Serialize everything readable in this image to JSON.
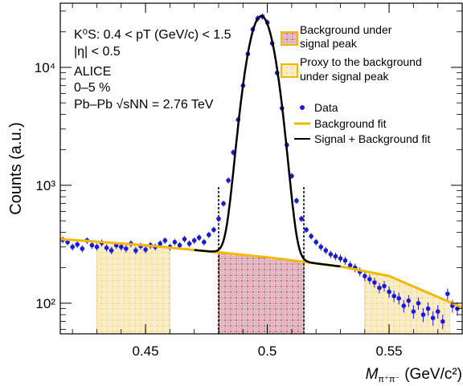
{
  "chart_data": {
    "type": "scatter",
    "yscale": "log",
    "xlim": [
      0.415,
      0.58
    ],
    "ylim": [
      55,
      35000
    ],
    "xlabel": {
      "main": "M",
      "sub": "π⁺π⁻",
      "unit": "(GeV/c²)"
    },
    "ylabel": "Counts (a.u.)",
    "x_ticks": [
      0.45,
      0.5,
      0.55
    ],
    "x_tick_labels": [
      "0.45",
      "0.5",
      "0.55"
    ],
    "y_ticks": [
      100,
      1000,
      10000
    ],
    "y_tick_labels": [
      "10²",
      "10³",
      "10⁴"
    ],
    "annotations": [
      "K⁰S: 0.4 < pT (GeV/c) < 1.5",
      "|η| < 0.5",
      "ALICE",
      "0–5 %",
      "Pb–Pb √sNN = 2.76 TeV"
    ],
    "legend_top": [
      {
        "label_lines": [
          "Background under",
          "signal peak"
        ],
        "style": "red-hatch",
        "color": "#b02040"
      },
      {
        "label_lines": [
          "Proxy to the background",
          "under signal peak"
        ],
        "style": "orange-hatch",
        "color": "#f0a000"
      }
    ],
    "legend_bottom": [
      {
        "label": "Data",
        "style": "marker",
        "color": "#1a1adc"
      },
      {
        "label": "Background fit",
        "style": "line",
        "color": "#f5b800"
      },
      {
        "label": "Signal + Background fit",
        "style": "line",
        "color": "#000000"
      }
    ],
    "regions": {
      "signal": [
        0.48,
        0.515
      ],
      "sidebands": [
        [
          0.43,
          0.46
        ],
        [
          0.54,
          0.575
        ]
      ]
    },
    "background_fit": {
      "x": [
        0.415,
        0.45,
        0.48,
        0.5,
        0.53,
        0.55,
        0.58
      ],
      "y": [
        350,
        310,
        270,
        245,
        205,
        170,
        92
      ]
    },
    "signal_fit": {
      "mean": 0.4975,
      "sigma": 0.0045,
      "peak": 27000
    },
    "series": [
      {
        "name": "Data",
        "x": [
          0.416,
          0.418,
          0.42,
          0.422,
          0.424,
          0.426,
          0.428,
          0.43,
          0.432,
          0.434,
          0.436,
          0.438,
          0.44,
          0.442,
          0.444,
          0.446,
          0.448,
          0.45,
          0.452,
          0.454,
          0.456,
          0.458,
          0.46,
          0.462,
          0.464,
          0.466,
          0.468,
          0.47,
          0.472,
          0.474,
          0.476,
          0.478,
          0.48,
          0.482,
          0.484,
          0.486,
          0.488,
          0.49,
          0.492,
          0.494,
          0.496,
          0.498,
          0.5,
          0.502,
          0.504,
          0.506,
          0.508,
          0.51,
          0.512,
          0.514,
          0.516,
          0.518,
          0.52,
          0.522,
          0.524,
          0.526,
          0.528,
          0.53,
          0.532,
          0.534,
          0.536,
          0.538,
          0.54,
          0.542,
          0.544,
          0.546,
          0.548,
          0.55,
          0.552,
          0.554,
          0.556,
          0.558,
          0.56,
          0.562,
          0.564,
          0.566,
          0.568,
          0.57,
          0.572,
          0.574,
          0.576,
          0.578
        ],
        "y": [
          345,
          330,
          300,
          315,
          290,
          340,
          310,
          300,
          325,
          295,
          280,
          310,
          300,
          290,
          320,
          280,
          305,
          285,
          310,
          300,
          320,
          340,
          300,
          330,
          310,
          350,
          320,
          340,
          360,
          330,
          380,
          420,
          520,
          700,
          1100,
          1900,
          3600,
          7000,
          13000,
          21000,
          26000,
          27000,
          24000,
          16000,
          9000,
          4500,
          2200,
          1200,
          740,
          520,
          420,
          370,
          330,
          300,
          280,
          260,
          250,
          240,
          230,
          210,
          200,
          185,
          170,
          160,
          150,
          135,
          140,
          125,
          115,
          110,
          95,
          105,
          85,
          100,
          80,
          90,
          75,
          85,
          70,
          120,
          95,
          90
        ]
      }
    ]
  }
}
